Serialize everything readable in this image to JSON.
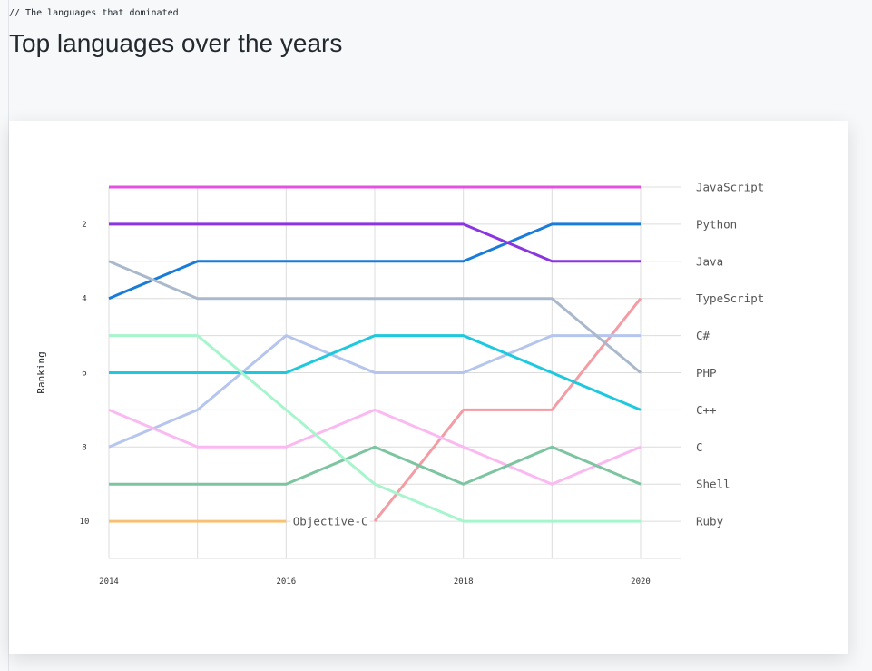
{
  "header": {
    "comment": "// The languages that dominated",
    "title": "Top languages over the years"
  },
  "chart_data": {
    "type": "line",
    "title": "Top languages over the years",
    "xlabel": "",
    "ylabel": "Ranking",
    "x": [
      2014,
      2015,
      2016,
      2017,
      2018,
      2019,
      2020
    ],
    "x_ticks": [
      "2014",
      "2016",
      "2018",
      "2020"
    ],
    "y_ticks": [
      "2",
      "4",
      "6",
      "8",
      "10"
    ],
    "ylim": [
      1,
      11
    ],
    "y_inverted": true,
    "grid": true,
    "series": [
      {
        "name": "JavaScript",
        "color": "#e251e0",
        "values": [
          1,
          1,
          1,
          1,
          1,
          1,
          1
        ]
      },
      {
        "name": "Python",
        "color": "#1a7cd9",
        "values": [
          4,
          3,
          3,
          3,
          3,
          2,
          2
        ]
      },
      {
        "name": "Java",
        "color": "#8a35e0",
        "values": [
          2,
          2,
          2,
          2,
          2,
          3,
          3
        ]
      },
      {
        "name": "TypeScript",
        "color": "#f39ca3",
        "values": [
          null,
          null,
          null,
          10,
          7,
          7,
          4
        ]
      },
      {
        "name": "C#",
        "color": "#b5c5ee",
        "values": [
          8,
          7,
          5,
          6,
          6,
          5,
          5
        ]
      },
      {
        "name": "PHP",
        "color": "#a9b9cb",
        "values": [
          3,
          4,
          4,
          4,
          4,
          4,
          6
        ]
      },
      {
        "name": "C++",
        "color": "#1ec8de",
        "values": [
          6,
          6,
          6,
          5,
          5,
          6,
          7
        ]
      },
      {
        "name": "C",
        "color": "#fbb9f2",
        "values": [
          7,
          8,
          8,
          7,
          8,
          9,
          8
        ]
      },
      {
        "name": "Shell",
        "color": "#7dc4a0",
        "values": [
          9,
          9,
          9,
          8,
          9,
          8,
          9
        ]
      },
      {
        "name": "Ruby",
        "color": "#a6f5cc",
        "values": [
          5,
          5,
          7,
          9,
          10,
          10,
          10
        ]
      },
      {
        "name": "Objective-C",
        "color": "#f8c074",
        "values": [
          10,
          10,
          10,
          null,
          null,
          null,
          null
        ]
      }
    ],
    "end_labels": [
      "JavaScript",
      "Python",
      "Java",
      "TypeScript",
      "C#",
      "PHP",
      "C++",
      "C",
      "Shell",
      "Ruby"
    ],
    "inline_label": "Objective-C"
  }
}
